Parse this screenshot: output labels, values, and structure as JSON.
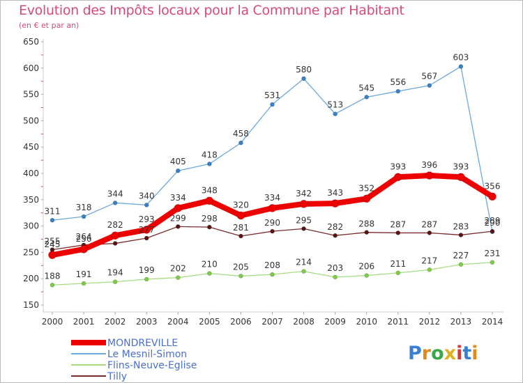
{
  "title": "Evolution des Impôts locaux pour la Commune par Habitant",
  "subtitle": "(en € et par an)",
  "logo_text": "Proxiti",
  "chart_data": {
    "type": "line",
    "title": "Evolution des Impôts locaux pour la Commune par Habitant",
    "subtitle": "(en € et par an)",
    "xlabel": "",
    "ylabel": "",
    "ylim": [
      150,
      650
    ],
    "yticks": [
      150,
      200,
      250,
      300,
      350,
      400,
      450,
      500,
      550,
      600,
      650
    ],
    "grid": false,
    "legend": "bottom-left",
    "x": [
      "2000",
      "2001",
      "2002",
      "2003",
      "2004",
      "2005",
      "2006",
      "2007",
      "2008",
      "2009",
      "2010",
      "2011",
      "2012",
      "2013",
      "2014"
    ],
    "series": [
      {
        "name": "Le Mesnil-Simon",
        "color": "#4a90cf",
        "values": [
          311,
          318,
          344,
          340,
          405,
          418,
          458,
          531,
          580,
          513,
          545,
          556,
          567,
          603,
          289
        ]
      },
      {
        "name": "Tilly",
        "color": "#6b1a1a",
        "values": [
          255,
          264,
          267,
          277,
          299,
          298,
          281,
          290,
          295,
          282,
          288,
          287,
          287,
          283,
          290
        ]
      },
      {
        "name": "Flins-Neuve-Eglise",
        "color": "#90d060",
        "values": [
          188,
          191,
          194,
          199,
          202,
          210,
          205,
          208,
          214,
          203,
          206,
          211,
          217,
          227,
          231
        ]
      },
      {
        "name": "MONDREVILLE",
        "color": "#ee0000",
        "values": [
          245,
          256,
          282,
          293,
          334,
          348,
          320,
          334,
          342,
          343,
          352,
          393,
          396,
          393,
          356
        ]
      }
    ],
    "labels": [
      {
        "series": "Le Mesnil-Simon",
        "texts": [
          "311",
          "318",
          "344",
          "340",
          "405",
          "418",
          "458",
          "531",
          "580",
          "513",
          "545",
          "556",
          "567",
          "603",
          "289"
        ]
      },
      {
        "series": "Tilly",
        "texts": [
          "255",
          "264",
          "",
          "277",
          "299",
          "298",
          "281",
          "290",
          "295",
          "282",
          "288",
          "287",
          "287",
          "283",
          "290"
        ]
      },
      {
        "series": "Flins-Neuve-Eglise",
        "texts": [
          "188",
          "191",
          "194",
          "199",
          "202",
          "210",
          "205",
          "208",
          "214",
          "203",
          "206",
          "211",
          "217",
          "227",
          "231"
        ]
      },
      {
        "series": "MONDREVILLE",
        "texts": [
          "245",
          "256",
          "282",
          "293",
          "334",
          "348",
          "320",
          "334",
          "342",
          "343",
          "352",
          "393",
          "396",
          "393",
          "356"
        ]
      }
    ],
    "legend_order": [
      "MONDREVILLE",
      "Le Mesnil-Simon",
      "Flins-Neuve-Eglise",
      "Tilly"
    ],
    "legend_text_color": "#4a6fd0"
  }
}
